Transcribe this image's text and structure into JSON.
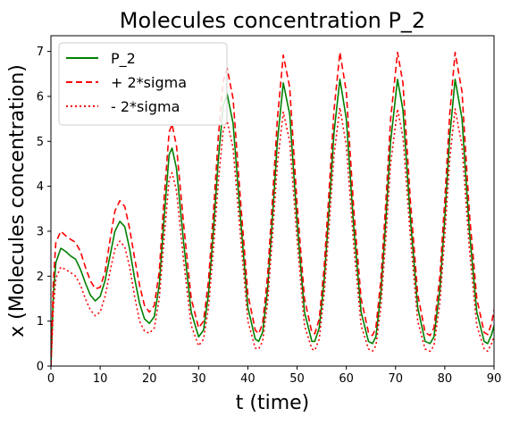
{
  "chart_data": {
    "type": "line",
    "title": "Molecules concentration P_2",
    "xlabel": "t (time)",
    "ylabel": "x (Molecules concentration)",
    "xlim": [
      0,
      90
    ],
    "ylim": [
      0,
      7.35
    ],
    "xticks": [
      0,
      10,
      20,
      30,
      40,
      50,
      60,
      70,
      80,
      90
    ],
    "yticks": [
      0,
      1,
      2,
      3,
      4,
      5,
      6,
      7
    ],
    "grid": false,
    "legend_position": "top-left",
    "series": [
      {
        "name": "P_2",
        "color": "#008000",
        "line_style": "solid",
        "x": [
          0,
          0.5,
          1,
          2,
          3,
          4,
          5,
          6,
          7,
          8,
          9,
          10,
          11,
          12,
          13,
          14,
          15,
          16,
          17,
          18,
          19,
          20,
          21,
          22,
          23,
          24,
          24.6,
          25.5,
          27,
          28.5,
          30,
          31,
          32,
          33,
          34,
          35,
          35.8,
          37,
          38.5,
          40,
          41.5,
          42.2,
          43,
          44,
          45,
          46,
          47.2,
          48.5,
          50,
          51.5,
          53,
          53.6,
          54.5,
          55.5,
          56.5,
          57.5,
          58.7,
          60,
          61.5,
          63,
          64.5,
          65.3,
          66,
          67,
          68,
          69,
          70.4,
          71.5,
          73,
          74.5,
          76,
          77,
          77.8,
          79,
          80,
          81,
          82.1,
          83.5,
          85,
          86.5,
          88,
          88.7,
          89.5,
          90
        ],
        "values": [
          0,
          1.6,
          2.3,
          2.62,
          2.55,
          2.45,
          2.38,
          2.15,
          1.85,
          1.58,
          1.45,
          1.55,
          1.9,
          2.45,
          3.0,
          3.22,
          3.1,
          2.6,
          1.95,
          1.4,
          1.05,
          0.95,
          1.1,
          1.8,
          3.3,
          4.7,
          4.85,
          4.4,
          2.7,
          1.2,
          0.65,
          0.8,
          1.6,
          3.0,
          4.6,
          5.8,
          6.05,
          5.4,
          3.3,
          1.3,
          0.6,
          0.55,
          0.75,
          1.7,
          3.3,
          5.0,
          6.3,
          5.6,
          3.2,
          1.2,
          0.55,
          0.55,
          0.85,
          1.9,
          3.5,
          5.2,
          6.38,
          5.5,
          3.1,
          1.2,
          0.55,
          0.5,
          0.65,
          1.6,
          3.2,
          5.0,
          6.38,
          5.7,
          3.3,
          1.3,
          0.55,
          0.5,
          0.65,
          1.7,
          3.3,
          5.1,
          6.38,
          5.5,
          3.0,
          1.2,
          0.55,
          0.5,
          0.7,
          0.9
        ]
      },
      {
        "name": "+ 2*sigma",
        "color": "#ff0000",
        "line_style": "dashed",
        "x": [
          0,
          0.5,
          1,
          2,
          3,
          4,
          5,
          6,
          7,
          8,
          9,
          10,
          11,
          12,
          13,
          14,
          15,
          16,
          17,
          18,
          19,
          20,
          21,
          22,
          23,
          24,
          24.6,
          25.5,
          27,
          28.5,
          30,
          31,
          32,
          33,
          34,
          35,
          35.8,
          37,
          38.5,
          40,
          41.5,
          42.2,
          43,
          44,
          45,
          46,
          47.2,
          48.5,
          50,
          51.5,
          53,
          53.6,
          54.5,
          55.5,
          56.5,
          57.5,
          58.7,
          60,
          61.5,
          63,
          64.5,
          65.3,
          66,
          67,
          68,
          69,
          70.4,
          71.5,
          73,
          74.5,
          76,
          77,
          77.8,
          79,
          80,
          81,
          82.1,
          83.5,
          85,
          86.5,
          88,
          88.7,
          89.5,
          90
        ],
        "values": [
          0,
          1.9,
          2.75,
          3.0,
          2.9,
          2.82,
          2.75,
          2.55,
          2.2,
          1.9,
          1.72,
          1.75,
          2.1,
          2.8,
          3.45,
          3.68,
          3.55,
          3.05,
          2.4,
          1.8,
          1.35,
          1.2,
          1.35,
          2.1,
          3.75,
          5.2,
          5.38,
          4.9,
          3.1,
          1.5,
          0.85,
          1.0,
          1.9,
          3.4,
          5.1,
          6.35,
          6.62,
          5.95,
          3.7,
          1.6,
          0.8,
          0.72,
          0.95,
          2.0,
          3.7,
          5.5,
          6.92,
          6.2,
          3.6,
          1.5,
          0.75,
          0.72,
          1.05,
          2.2,
          3.9,
          5.7,
          6.98,
          6.1,
          3.5,
          1.5,
          0.75,
          0.68,
          0.85,
          1.9,
          3.6,
          5.5,
          6.98,
          6.3,
          3.7,
          1.6,
          0.75,
          0.68,
          0.85,
          2.0,
          3.7,
          5.6,
          6.98,
          6.1,
          3.4,
          1.5,
          0.75,
          0.7,
          0.95,
          1.25
        ]
      },
      {
        "name": "- 2*sigma",
        "color": "#ff0000",
        "line_style": "dotted",
        "x": [
          0,
          0.5,
          1,
          2,
          3,
          4,
          5,
          6,
          7,
          8,
          9,
          10,
          11,
          12,
          13,
          14,
          15,
          16,
          17,
          18,
          19,
          20,
          21,
          22,
          23,
          24,
          24.6,
          25.5,
          27,
          28.5,
          30,
          31,
          32,
          33,
          34,
          35,
          35.8,
          37,
          38.5,
          40,
          41.5,
          42.2,
          43,
          44,
          45,
          46,
          47.2,
          48.5,
          50,
          51.5,
          53,
          53.6,
          54.5,
          55.5,
          56.5,
          57.5,
          58.7,
          60,
          61.5,
          63,
          64.5,
          65.3,
          66,
          67,
          68,
          69,
          70.4,
          71.5,
          73,
          74.5,
          76,
          77,
          77.8,
          79,
          80,
          81,
          82.1,
          83.5,
          85,
          86.5,
          88,
          88.7,
          89.5,
          90
        ],
        "values": [
          0,
          1.3,
          1.95,
          2.2,
          2.15,
          2.08,
          2.0,
          1.8,
          1.5,
          1.25,
          1.12,
          1.2,
          1.55,
          2.1,
          2.6,
          2.78,
          2.65,
          2.2,
          1.55,
          1.0,
          0.78,
          0.73,
          0.85,
          1.5,
          2.85,
          4.15,
          4.3,
          3.9,
          2.3,
          0.9,
          0.45,
          0.6,
          1.3,
          2.6,
          4.1,
          5.25,
          5.45,
          4.85,
          2.9,
          1.0,
          0.4,
          0.38,
          0.55,
          1.4,
          2.9,
          4.5,
          5.65,
          5.0,
          2.8,
          0.9,
          0.38,
          0.35,
          0.6,
          1.6,
          3.1,
          4.7,
          5.75,
          4.9,
          2.7,
          0.9,
          0.38,
          0.33,
          0.45,
          1.3,
          2.8,
          4.5,
          5.72,
          5.1,
          2.9,
          1.0,
          0.38,
          0.33,
          0.45,
          1.4,
          2.9,
          4.6,
          5.72,
          4.9,
          2.6,
          0.9,
          0.38,
          0.33,
          0.5,
          0.65
        ]
      }
    ]
  }
}
